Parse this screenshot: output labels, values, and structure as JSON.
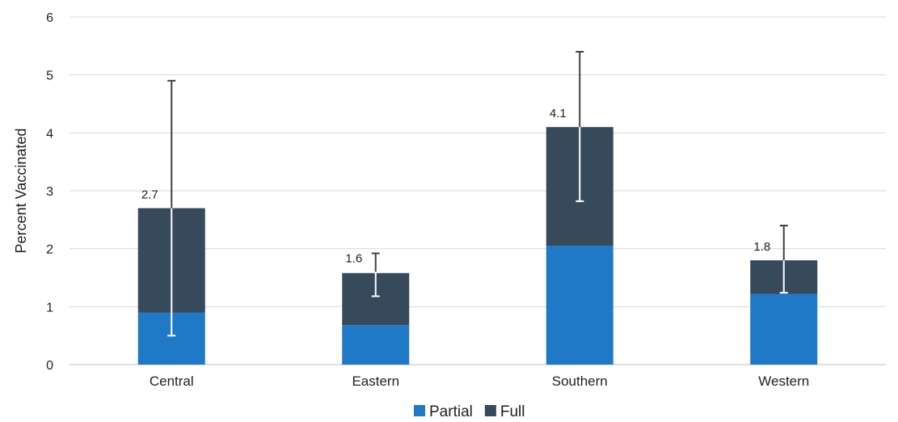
{
  "chart_data": {
    "type": "bar",
    "stacked": true,
    "categories": [
      "Central",
      "Eastern",
      "Southern",
      "Western"
    ],
    "series": [
      {
        "name": "Partial",
        "color": "#2079c7",
        "values": [
          0.9,
          0.68,
          2.05,
          1.22
        ]
      },
      {
        "name": "Full",
        "color": "#374a5c",
        "values": [
          1.8,
          0.9,
          2.05,
          0.58
        ]
      }
    ],
    "totals": [
      2.7,
      1.6,
      4.1,
      1.8
    ],
    "total_labels": [
      "2.7",
      "1.6",
      "4.1",
      "1.8"
    ],
    "error_bars": [
      {
        "low": 0.5,
        "high": 4.9
      },
      {
        "low": 1.18,
        "high": 1.92
      },
      {
        "low": 2.82,
        "high": 5.4
      },
      {
        "low": 1.24,
        "high": 2.4
      }
    ],
    "ylabel": "Percent Vaccinated",
    "xlabel": "",
    "ylim": [
      0,
      6
    ],
    "yticks": [
      0,
      1,
      2,
      3,
      4,
      5,
      6
    ],
    "grid": true,
    "legend_position": "bottom-center"
  }
}
